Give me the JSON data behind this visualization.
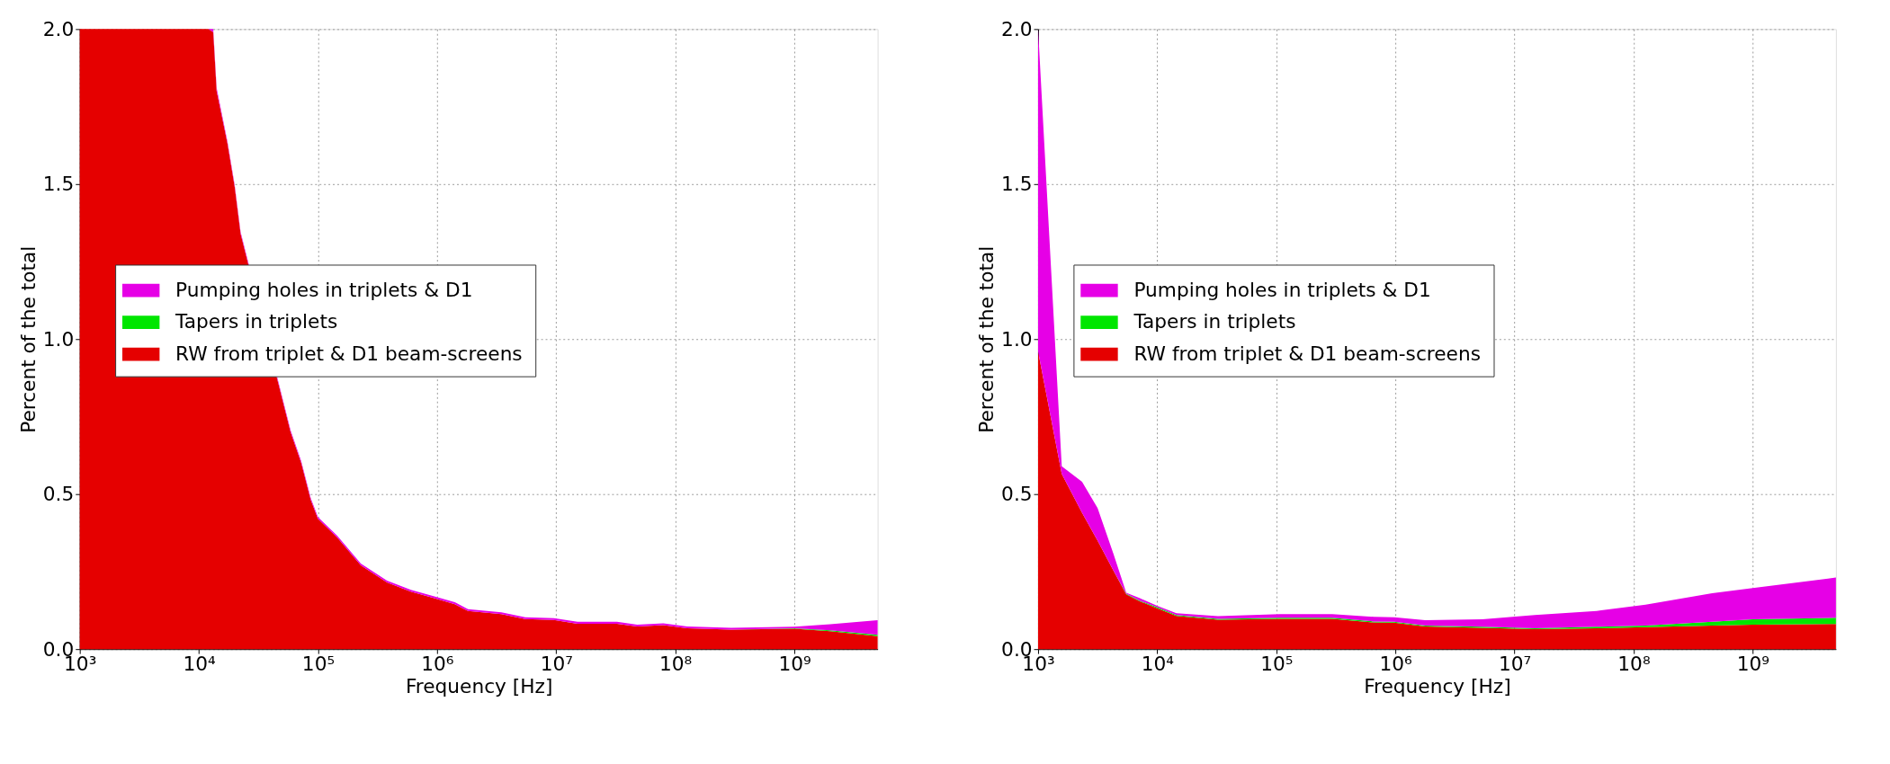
{
  "chart_data": [
    {
      "type": "area",
      "stacked": true,
      "xlabel": "Frequency [Hz]",
      "ylabel": "Percent of the total",
      "log": "x",
      "grid": true,
      "legend": "left",
      "xlim": [
        1000,
        5000000000
      ],
      "ylim": [
        0,
        2
      ],
      "xticks": [
        {
          "value": 1000,
          "label": "10³"
        },
        {
          "value": 10000,
          "label": "10⁴"
        },
        {
          "value": 100000,
          "label": "10⁵"
        },
        {
          "value": 1000000,
          "label": "10⁶"
        },
        {
          "value": 10000000,
          "label": "10⁷"
        },
        {
          "value": 100000000,
          "label": "10⁸"
        },
        {
          "value": 1000000000,
          "label": "10⁹"
        }
      ],
      "yticks": [
        {
          "value": 0,
          "label": "0.0"
        },
        {
          "value": 0.5,
          "label": "0.5"
        },
        {
          "value": 1,
          "label": "1.0"
        },
        {
          "value": 1.5,
          "label": "1.5"
        },
        {
          "value": 2,
          "label": "2.0"
        }
      ],
      "x": [
        1000,
        12000,
        13200,
        14100,
        17400,
        20000,
        22400,
        58900,
        72400,
        87100,
        100000,
        145000,
        229000,
        380000,
        603000,
        933000,
        1410000,
        1820000,
        3470000,
        5500000,
        9550000,
        15100000,
        32400000,
        47900000,
        79400000,
        126000000,
        295000000,
        1000000000,
        2000000000,
        5000000000
      ],
      "series": [
        {
          "name": "RW from triplet & D1 beam-screens",
          "color": "#e50000",
          "values": [
            2.0,
            2.0,
            1.99,
            1.8,
            1.63,
            1.49,
            1.34,
            0.7,
            0.6,
            0.48,
            0.42,
            0.36,
            0.27,
            0.215,
            0.185,
            0.165,
            0.145,
            0.123,
            0.113,
            0.097,
            0.094,
            0.082,
            0.082,
            0.073,
            0.077,
            0.067,
            0.063,
            0.066,
            0.058,
            0.042
          ]
        },
        {
          "name": "Tapers in triplets",
          "color": "#00e600",
          "values": [
            0,
            0,
            0,
            0,
            0,
            0,
            0,
            0,
            0,
            0,
            0,
            0,
            0,
            0,
            0,
            0,
            0,
            0,
            0,
            0,
            0,
            0,
            0,
            0,
            0,
            0,
            0,
            0.001,
            0.003,
            0.004
          ]
        },
        {
          "name": "Pumping holes in triplets & D1",
          "color": "#e600e6",
          "values": [
            0,
            0,
            0.01,
            0.01,
            0.006,
            0.006,
            0.006,
            0.006,
            0.006,
            0.006,
            0.006,
            0.006,
            0.006,
            0.006,
            0.006,
            0.006,
            0.006,
            0.006,
            0.006,
            0.006,
            0.006,
            0.006,
            0.006,
            0.006,
            0.006,
            0.006,
            0.006,
            0.005,
            0.019,
            0.047
          ]
        }
      ]
    },
    {
      "type": "area",
      "stacked": true,
      "xlabel": "Frequency [Hz]",
      "ylabel": "Percent of the total",
      "log": "x",
      "grid": true,
      "legend": "left",
      "xlim": [
        1000,
        5000000000
      ],
      "ylim": [
        0,
        2
      ],
      "xticks": [
        {
          "value": 1000,
          "label": "10³"
        },
        {
          "value": 10000,
          "label": "10⁴"
        },
        {
          "value": 100000,
          "label": "10⁵"
        },
        {
          "value": 1000000,
          "label": "10⁶"
        },
        {
          "value": 10000000,
          "label": "10⁷"
        },
        {
          "value": 100000000,
          "label": "10⁸"
        },
        {
          "value": 1000000000,
          "label": "10⁹"
        }
      ],
      "yticks": [
        {
          "value": 0,
          "label": "0.0"
        },
        {
          "value": 0.5,
          "label": "0.5"
        },
        {
          "value": 1,
          "label": "1.0"
        },
        {
          "value": 1.5,
          "label": "1.5"
        },
        {
          "value": 2,
          "label": "2.0"
        }
      ],
      "x": [
        1000,
        1580,
        2340,
        3160,
        4270,
        5500,
        7080,
        10000,
        14500,
        32400,
        107000,
        295000,
        661000,
        977000,
        1780000,
        5370000,
        14800000,
        49000000,
        126000000,
        457000000,
        1000000000,
        5000000000
      ],
      "series": [
        {
          "name": "RW from triplet & D1 beam-screens",
          "color": "#e50000",
          "values": [
            0.96,
            0.565,
            0.44,
            0.35,
            0.255,
            0.177,
            0.155,
            0.132,
            0.107,
            0.095,
            0.098,
            0.098,
            0.086,
            0.085,
            0.073,
            0.069,
            0.064,
            0.067,
            0.071,
            0.076,
            0.079,
            0.081
          ]
        },
        {
          "name": "Tapers in triplets",
          "color": "#00e600",
          "values": [
            0,
            0,
            0,
            0,
            0,
            0.002,
            0.002,
            0.003,
            0.003,
            0.003,
            0.003,
            0.003,
            0.003,
            0.003,
            0.003,
            0.003,
            0.003,
            0.005,
            0.005,
            0.012,
            0.017,
            0.02
          ]
        },
        {
          "name": "Pumping holes in triplets & D1",
          "color": "#e600e6",
          "values": [
            1.04,
            0.025,
            0.1,
            0.105,
            0.055,
            0.003,
            0.008,
            0.005,
            0.006,
            0.008,
            0.012,
            0.012,
            0.015,
            0.015,
            0.017,
            0.024,
            0.043,
            0.051,
            0.067,
            0.092,
            0.101,
            0.13
          ]
        }
      ]
    }
  ]
}
